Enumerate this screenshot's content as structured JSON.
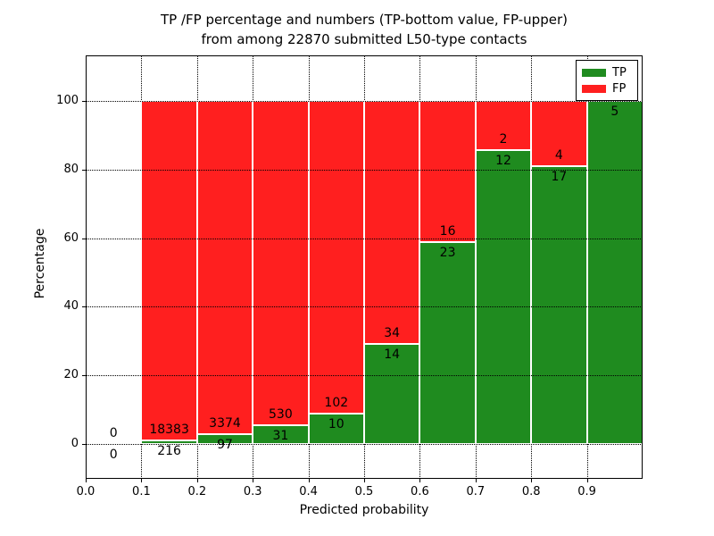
{
  "figure": {
    "title_line1": "TP /FP percentage and numbers (TP-bottom value, FP-upper)",
    "title_line2": "from among 22870 submitted L50-type contacts"
  },
  "axes": {
    "xlabel": "Predicted probability",
    "ylabel": "Percentage"
  },
  "legend": {
    "items": [
      {
        "label": "TP",
        "color": "#1f8b1f"
      },
      {
        "label": "FP",
        "color": "#ff1f1f"
      }
    ]
  },
  "chart_data": {
    "type": "bar",
    "subtype": "stacked-percentage",
    "title": "TP /FP percentage and numbers (TP-bottom value, FP-upper) from among 22870 submitted L50-type contacts",
    "total_submitted": 22870,
    "xlabel": "Predicted probability",
    "ylabel": "Percentage",
    "xlim": [
      0.0,
      1.0
    ],
    "ylim": [
      -10,
      113
    ],
    "x_tick_labels": [
      "0.0",
      "0.1",
      "0.2",
      "0.3",
      "0.4",
      "0.5",
      "0.6",
      "0.7",
      "0.8",
      "0.9"
    ],
    "y_ticks": [
      0,
      20,
      40,
      60,
      80,
      100
    ],
    "grid": true,
    "legend_position": "upper right",
    "series": [
      {
        "name": "TP",
        "color": "#1f8b1f"
      },
      {
        "name": "FP",
        "color": "#ff1f1f"
      }
    ],
    "bins": [
      {
        "x_start": 0.0,
        "x_end": 0.1,
        "tp_count": 0,
        "fp_count": 0,
        "tp_pct": null,
        "fp_pct": null,
        "has_bar": false
      },
      {
        "x_start": 0.1,
        "x_end": 0.2,
        "tp_count": 216,
        "fp_count": 18383,
        "tp_pct": 1.16,
        "fp_pct": 98.84,
        "has_bar": true
      },
      {
        "x_start": 0.2,
        "x_end": 0.3,
        "tp_count": 97,
        "fp_count": 3374,
        "tp_pct": 2.79,
        "fp_pct": 97.21,
        "has_bar": true
      },
      {
        "x_start": 0.3,
        "x_end": 0.4,
        "tp_count": 31,
        "fp_count": 530,
        "tp_pct": 5.53,
        "fp_pct": 94.47,
        "has_bar": true
      },
      {
        "x_start": 0.4,
        "x_end": 0.5,
        "tp_count": 10,
        "fp_count": 102,
        "tp_pct": 8.93,
        "fp_pct": 91.07,
        "has_bar": true
      },
      {
        "x_start": 0.5,
        "x_end": 0.6,
        "tp_count": 14,
        "fp_count": 34,
        "tp_pct": 29.17,
        "fp_pct": 70.83,
        "has_bar": true
      },
      {
        "x_start": 0.6,
        "x_end": 0.7,
        "tp_count": 23,
        "fp_count": 16,
        "tp_pct": 58.97,
        "fp_pct": 41.03,
        "has_bar": true
      },
      {
        "x_start": 0.7,
        "x_end": 0.8,
        "tp_count": 12,
        "fp_count": 2,
        "tp_pct": 85.71,
        "fp_pct": 14.29,
        "has_bar": true
      },
      {
        "x_start": 0.8,
        "x_end": 0.9,
        "tp_count": 17,
        "fp_count": 4,
        "tp_pct": 80.95,
        "fp_pct": 19.05,
        "has_bar": true
      },
      {
        "x_start": 0.9,
        "x_end": 1.0,
        "tp_count": 5,
        "fp_count": 0,
        "tp_pct": 100.0,
        "fp_pct": 0.0,
        "has_bar": true
      }
    ]
  }
}
